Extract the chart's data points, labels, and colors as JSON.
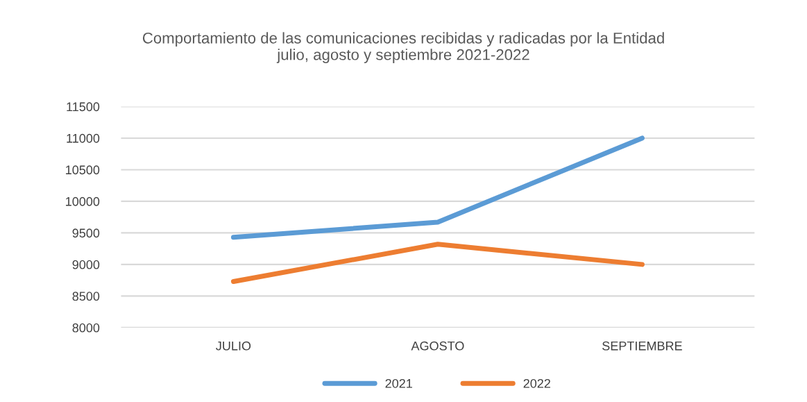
{
  "chart_data": {
    "type": "line",
    "title": "Comportamiento de las comunicaciones recibidas y radicadas por la Entidad\njulio, agosto y septiembre 2021-2022",
    "categories": [
      "JULIO",
      "AGOSTO",
      "SEPTIEMBRE"
    ],
    "series": [
      {
        "name": "2021",
        "color": "#5b9bd5",
        "values": [
          9430,
          9670,
          11000
        ]
      },
      {
        "name": "2022",
        "color": "#ed7d31",
        "values": [
          8730,
          9320,
          9000
        ]
      }
    ],
    "ylim": [
      8000,
      11500
    ],
    "yticks": [
      8000,
      8500,
      9000,
      9500,
      10000,
      10500,
      11000,
      11500
    ],
    "grid": "y",
    "legend": "bottom",
    "marker": "none",
    "line_style": "solid"
  }
}
